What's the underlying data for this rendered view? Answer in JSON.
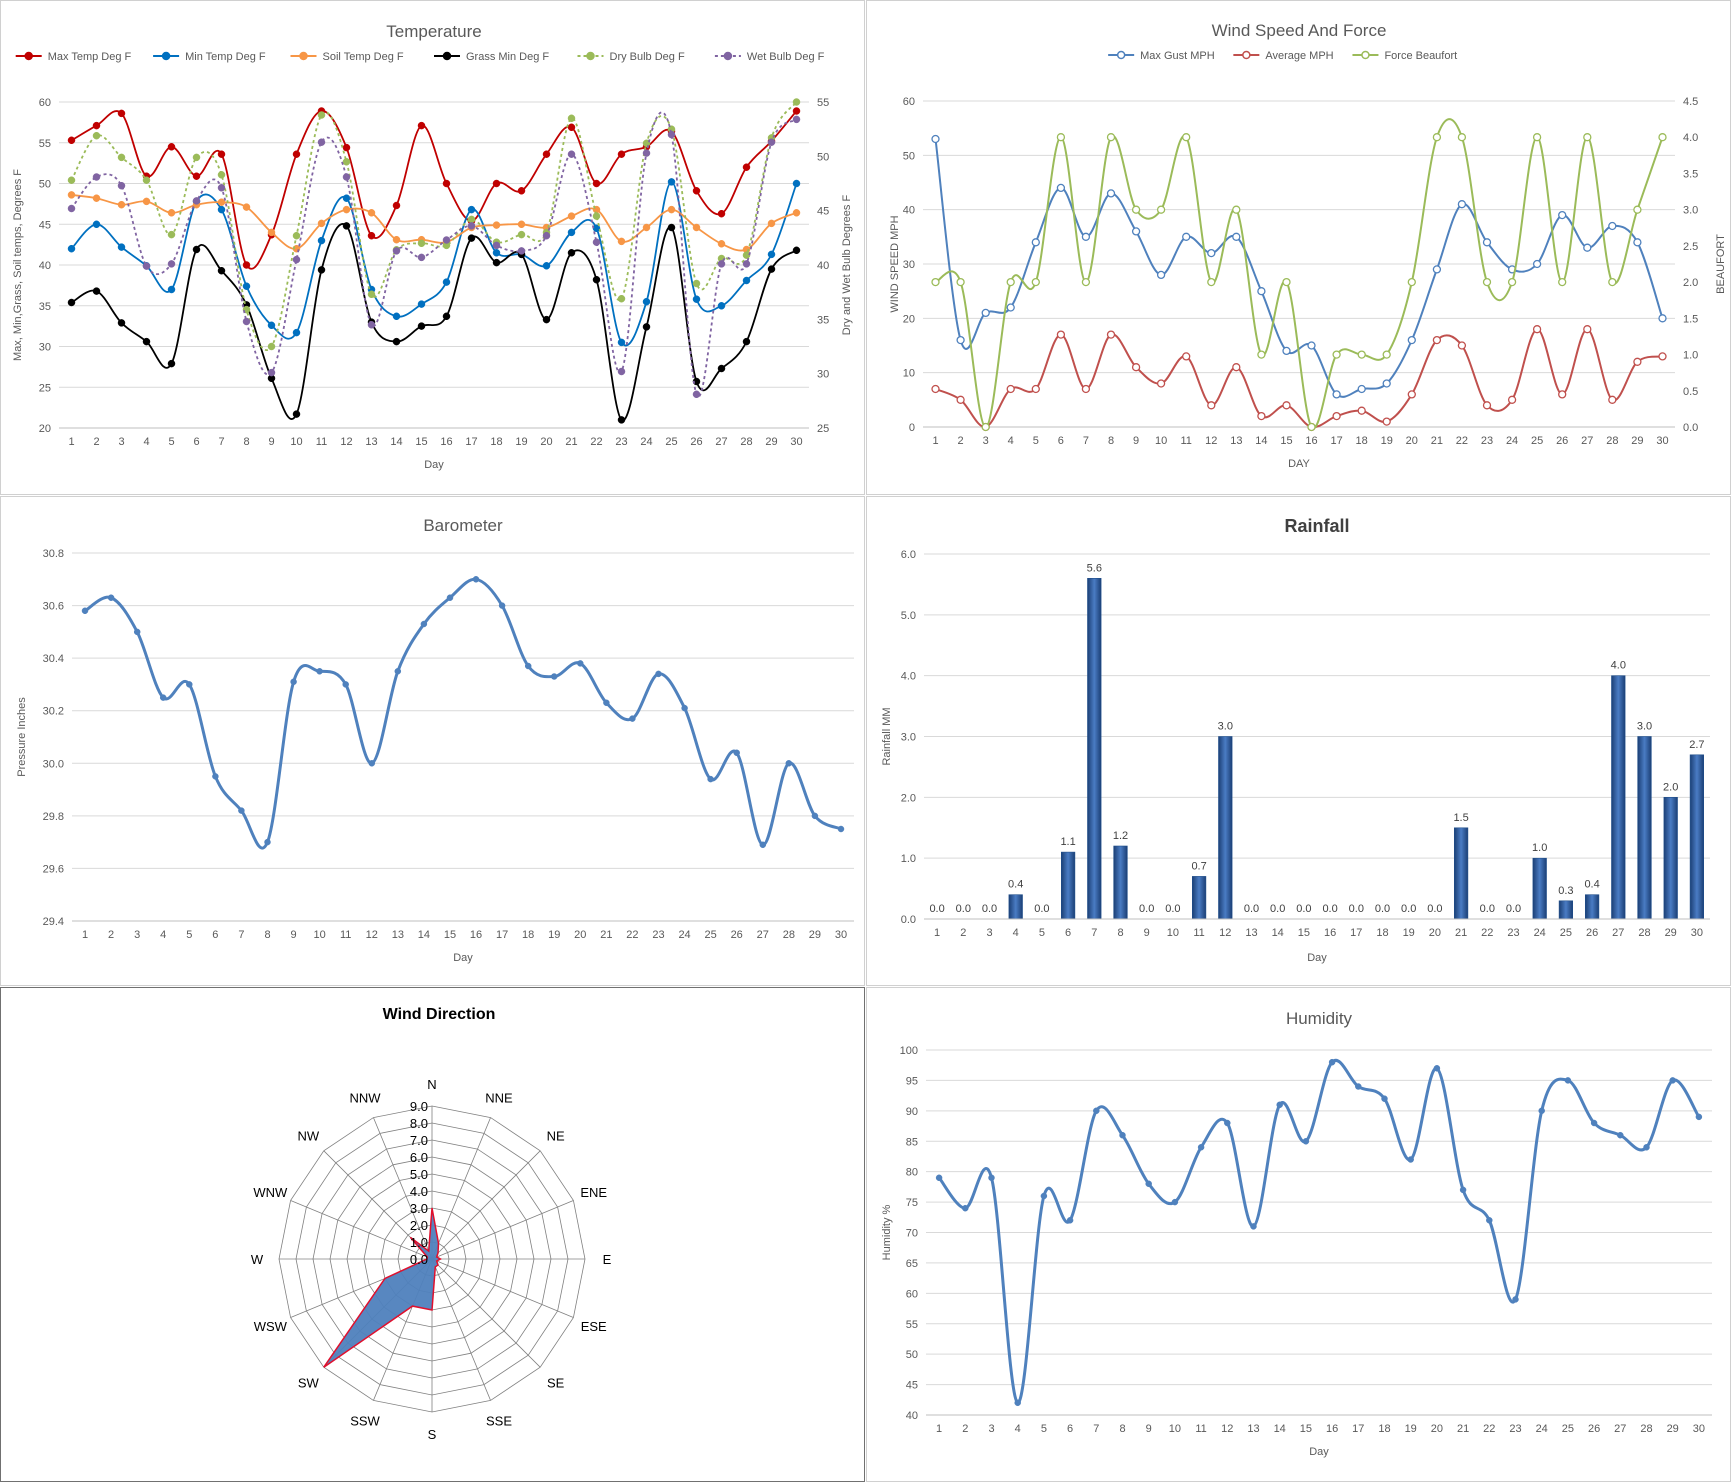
{
  "chart_data": [
    {
      "id": "temperature",
      "type": "line",
      "title": "Temperature",
      "xlabel": "Day",
      "ylabel": "Max, Min,Grass, Soil temps, Degrees F",
      "y2label": "Dry and Wet Bulb Degrees F",
      "ylim": [
        20,
        60
      ],
      "ytick_step": 5,
      "y2lim": [
        25,
        55
      ],
      "y2tick_step": 5,
      "x": [
        1,
        2,
        3,
        4,
        5,
        6,
        7,
        8,
        9,
        10,
        11,
        12,
        13,
        14,
        15,
        16,
        17,
        18,
        19,
        20,
        21,
        22,
        23,
        24,
        25,
        26,
        27,
        28,
        29,
        30
      ],
      "grid": true,
      "legend": "top",
      "series": [
        {
          "name": "Max Temp Deg F",
          "color": "#c00000",
          "dash": "",
          "axis": "left",
          "values": [
            55.3,
            57.1,
            58.6,
            50.9,
            54.5,
            50.9,
            53.6,
            40,
            43.7,
            53.6,
            58.9,
            54.4,
            43.6,
            47.3,
            57.1,
            50,
            45.4,
            50,
            49.1,
            53.6,
            56.9,
            50,
            53.6,
            54.5,
            56.4,
            49.1,
            46.3,
            52,
            55.2,
            58.9
          ]
        },
        {
          "name": "Min Temp Deg F",
          "color": "#0070c0",
          "dash": "",
          "axis": "left",
          "values": [
            42,
            45,
            42.2,
            39.9,
            37,
            47.8,
            46.8,
            37.4,
            32.6,
            31.7,
            43,
            48.2,
            37,
            33.7,
            35.2,
            37.9,
            46.8,
            41.5,
            41.3,
            39.9,
            44,
            44.5,
            30.5,
            35.5,
            50.2,
            35.8,
            35,
            38.1,
            41.3,
            50
          ]
        },
        {
          "name": "Soil Temp Deg F",
          "color": "#f79646",
          "dash": "",
          "axis": "left",
          "values": [
            48.6,
            48.2,
            47.4,
            47.8,
            46.4,
            47.4,
            47.7,
            47.1,
            44,
            42,
            45.1,
            46.8,
            46.4,
            43.1,
            43.1,
            42.8,
            44.6,
            44.9,
            45,
            44.6,
            46,
            46.8,
            42.9,
            44.6,
            46.8,
            44.6,
            42.6,
            41.9,
            45.1,
            46.4
          ]
        },
        {
          "name": "Grass Min Deg F",
          "color": "#000000",
          "dash": "",
          "axis": "left",
          "values": [
            35.4,
            36.8,
            32.9,
            30.6,
            27.9,
            41.9,
            39.3,
            35.1,
            26.1,
            21.7,
            39.4,
            44.8,
            33,
            30.6,
            32.5,
            33.7,
            43.3,
            40.3,
            41.3,
            33.3,
            41.5,
            38.2,
            21,
            32.4,
            44.6,
            25.7,
            27.3,
            30.6,
            39.5,
            41.8
          ]
        },
        {
          "name": "Dry Bulb Deg F",
          "color": "#9bbb59",
          "dash": "3,3",
          "axis": "right",
          "values": [
            47.8,
            51.9,
            49.9,
            47.8,
            42.8,
            49.9,
            48.3,
            35.9,
            32.5,
            42.7,
            53.8,
            49.5,
            37.3,
            41.4,
            42,
            41.8,
            44.2,
            42.1,
            42.8,
            43,
            53.5,
            44.5,
            36.9,
            51.2,
            52.5,
            38.3,
            40.6,
            40.9,
            51.7,
            55
          ]
        },
        {
          "name": "Wet Bulb Deg F",
          "color": "#8064a2",
          "dash": "3,3",
          "axis": "right",
          "values": [
            45.2,
            48.1,
            47.3,
            39.9,
            40.1,
            45.9,
            47.1,
            34.8,
            30.1,
            40.5,
            51.3,
            48.1,
            34.5,
            41.3,
            40.7,
            42.3,
            43.6,
            41.8,
            41.3,
            42.7,
            50.2,
            42.1,
            30.2,
            50.3,
            52,
            28.1,
            40.1,
            40.1,
            51.3,
            53.4
          ]
        }
      ]
    },
    {
      "id": "wind",
      "type": "line",
      "title": "Wind Speed And Force",
      "xlabel": "DAY",
      "ylabel": "WIND SPEED MPH",
      "y2label": "BEAUFORT",
      "ylim": [
        0,
        60
      ],
      "ytick_step": 10,
      "y2lim": [
        0,
        4.5
      ],
      "y2tick_step": 0.5,
      "x": [
        1,
        2,
        3,
        4,
        5,
        6,
        7,
        8,
        9,
        10,
        11,
        12,
        13,
        14,
        15,
        16,
        17,
        18,
        19,
        20,
        21,
        22,
        23,
        24,
        25,
        26,
        27,
        28,
        29,
        30
      ],
      "grid": true,
      "legend": "top",
      "series": [
        {
          "name": "Max Gust MPH",
          "color": "#4f81bd",
          "axis": "left",
          "values": [
            53,
            16,
            21,
            22,
            34,
            44,
            35,
            43,
            36,
            28,
            35,
            32,
            35,
            25,
            14,
            15,
            6,
            7,
            8,
            16,
            29,
            41,
            34,
            29,
            30,
            39,
            33,
            37,
            34,
            20
          ]
        },
        {
          "name": "Average MPH",
          "color": "#c0504d",
          "axis": "left",
          "values": [
            7,
            5,
            0,
            7,
            7,
            17,
            7,
            17,
            11,
            8,
            13,
            4,
            11,
            2,
            4,
            0,
            2,
            3,
            1,
            6,
            16,
            15,
            4,
            5,
            18,
            6,
            18,
            5,
            12,
            13
          ]
        },
        {
          "name": "Force Beaufort",
          "color": "#9bbb59",
          "axis": "right",
          "values": [
            2,
            2,
            0,
            2,
            2,
            4,
            2,
            4,
            3,
            3,
            4,
            2,
            3,
            1,
            2,
            0,
            1,
            1,
            1,
            2,
            4,
            4,
            2,
            2,
            4,
            2,
            4,
            2,
            3,
            4
          ]
        }
      ]
    },
    {
      "id": "barometer",
      "type": "line",
      "title": "Barometer",
      "xlabel": "Day",
      "ylabel": "Pressure Inches",
      "ylim": [
        29.4,
        30.8
      ],
      "ytick_step": 0.2,
      "x": [
        1,
        2,
        3,
        4,
        5,
        6,
        7,
        8,
        9,
        10,
        11,
        12,
        13,
        14,
        15,
        16,
        17,
        18,
        19,
        20,
        21,
        22,
        23,
        24,
        25,
        26,
        27,
        28,
        29,
        30
      ],
      "grid": true,
      "series": [
        {
          "color": "#4f81bd",
          "values": [
            30.58,
            30.63,
            30.5,
            30.25,
            30.3,
            29.95,
            29.82,
            29.7,
            30.31,
            30.35,
            30.3,
            30,
            30.35,
            30.53,
            30.63,
            30.7,
            30.6,
            30.37,
            30.33,
            30.38,
            30.23,
            30.17,
            30.34,
            30.21,
            29.94,
            30.04,
            29.69,
            30,
            29.8,
            29.75
          ]
        }
      ]
    },
    {
      "id": "rainfall",
      "type": "bar",
      "title": "Rainfall",
      "xlabel": "Day",
      "ylabel": "Rainfall MM",
      "ylim": [
        0,
        6
      ],
      "ytick_step": 1,
      "categories": [
        "1",
        "2",
        "3",
        "4",
        "5",
        "6",
        "7",
        "8",
        "9",
        "10",
        "11",
        "12",
        "13",
        "14",
        "15",
        "16",
        "17",
        "18",
        "19",
        "20",
        "21",
        "22",
        "23",
        "24",
        "25",
        "26",
        "27",
        "28",
        "29",
        "30"
      ],
      "values": [
        0,
        0,
        0,
        0.4,
        0,
        1.1,
        5.6,
        1.2,
        0,
        0,
        0.7,
        3,
        0,
        0,
        0,
        0,
        0,
        0,
        0,
        0,
        1.5,
        0,
        0,
        1,
        0.3,
        0.4,
        4,
        3,
        2,
        2.7
      ],
      "grid": true,
      "color": "#1f4e8a"
    },
    {
      "id": "wind_direction",
      "type": "radar",
      "title": "Wind Direction",
      "categories": [
        "N",
        "NNE",
        "NE",
        "ENE",
        "E",
        "ESE",
        "SE",
        "SSE",
        "S",
        "SSW",
        "SW",
        "WSW",
        "W",
        "WNW",
        "NW",
        "NNW"
      ],
      "values": [
        3,
        1,
        0.5,
        0.3,
        0.5,
        0.3,
        0.5,
        0.5,
        3,
        3,
        9,
        3,
        0.3,
        0.3,
        1.8,
        0.5
      ],
      "rlim": [
        0,
        9
      ],
      "r_tick_step": 1,
      "fill": "#4f81bd",
      "stroke": "#e0102d"
    },
    {
      "id": "humidity",
      "type": "line",
      "title": "Humidity",
      "xlabel": "Day",
      "ylabel": "Humidity %",
      "ylim": [
        40,
        100
      ],
      "ytick_step": 5,
      "x": [
        1,
        2,
        3,
        4,
        5,
        6,
        7,
        8,
        9,
        10,
        11,
        12,
        13,
        14,
        15,
        16,
        17,
        18,
        19,
        20,
        21,
        22,
        23,
        24,
        25,
        26,
        27,
        28,
        29,
        30
      ],
      "grid": true,
      "series": [
        {
          "color": "#4f81bd",
          "values": [
            79,
            74,
            79,
            42,
            76,
            72,
            90,
            86,
            78,
            75,
            84,
            88,
            71,
            91,
            85,
            98,
            94,
            92,
            82,
            97,
            77,
            72,
            59,
            90,
            95,
            88,
            86,
            84,
            95,
            89
          ]
        }
      ]
    }
  ]
}
